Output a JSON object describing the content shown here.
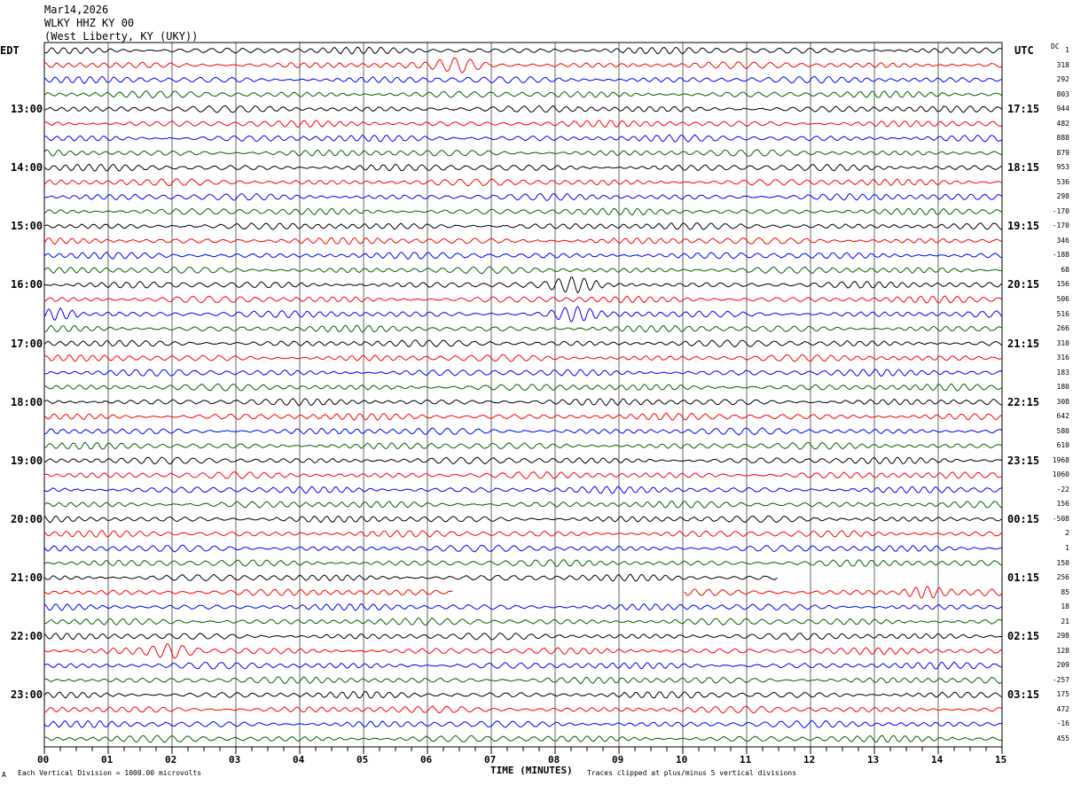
{
  "header": {
    "date": "Mar14,2026",
    "station": "WLKY HHZ KY 00",
    "location": "(West Liberty, KY (UKY))"
  },
  "left_axis_label": "EDT",
  "right_axis_label": "UTC",
  "dc_label": "DC",
  "footer": {
    "scale": "Each Vertical Division = 1000.00 microvolts",
    "xlabel": "TIME (MINUTES)",
    "clip": "Traces clipped at plus/minus 5 vertical divisions",
    "corner": "A"
  },
  "colors": [
    "#000000",
    "#ff0000",
    "#0000ff",
    "#006400"
  ],
  "chart_data": {
    "type": "line",
    "title": "WLKY HHZ KY 00 helicorder",
    "xlabel": "TIME (MINUTES)",
    "xlim": [
      0,
      15
    ],
    "x_ticks": [
      "00",
      "01",
      "02",
      "03",
      "04",
      "05",
      "06",
      "07",
      "08",
      "09",
      "10",
      "11",
      "12",
      "13",
      "14",
      "15"
    ],
    "rows": 48,
    "minutes_per_row": 15,
    "left_hour_labels": [
      "13:00",
      "14:00",
      "15:00",
      "16:00",
      "17:00",
      "18:00",
      "19:00",
      "20:00",
      "21:00",
      "22:00",
      "23:00"
    ],
    "right_hour_labels": [
      "17:15",
      "18:15",
      "19:15",
      "20:15",
      "21:15",
      "22:15",
      "23:15",
      "00:15",
      "01:15",
      "02:15",
      "03:15"
    ],
    "dc_offsets": [
      1,
      318,
      292,
      803,
      944,
      482,
      888,
      879,
      953,
      536,
      298,
      -170,
      -170,
      346,
      -188,
      68,
      156,
      506,
      516,
      266,
      310,
      316,
      183,
      180,
      308,
      642,
      580,
      610,
      1968,
      1060,
      -22,
      156,
      -508,
      2,
      1,
      150,
      256,
      85,
      18,
      21,
      298,
      128,
      209,
      -257,
      175,
      472,
      -16,
      455
    ],
    "events": [
      {
        "row": 1,
        "minute": 6.5
      },
      {
        "row": 16,
        "minute": 8.3
      },
      {
        "row": 18,
        "minute": 0.2
      },
      {
        "row": 18,
        "minute": 8.3
      },
      {
        "row": 37,
        "minute": 13.8
      },
      {
        "row": 41,
        "minute": 2.0
      }
    ],
    "gaps": [
      {
        "row": 36,
        "from_minute": 11.5,
        "to_minute": 15
      },
      {
        "row": 37,
        "from_minute": 6.4,
        "to_minute": 10.0
      }
    ]
  }
}
